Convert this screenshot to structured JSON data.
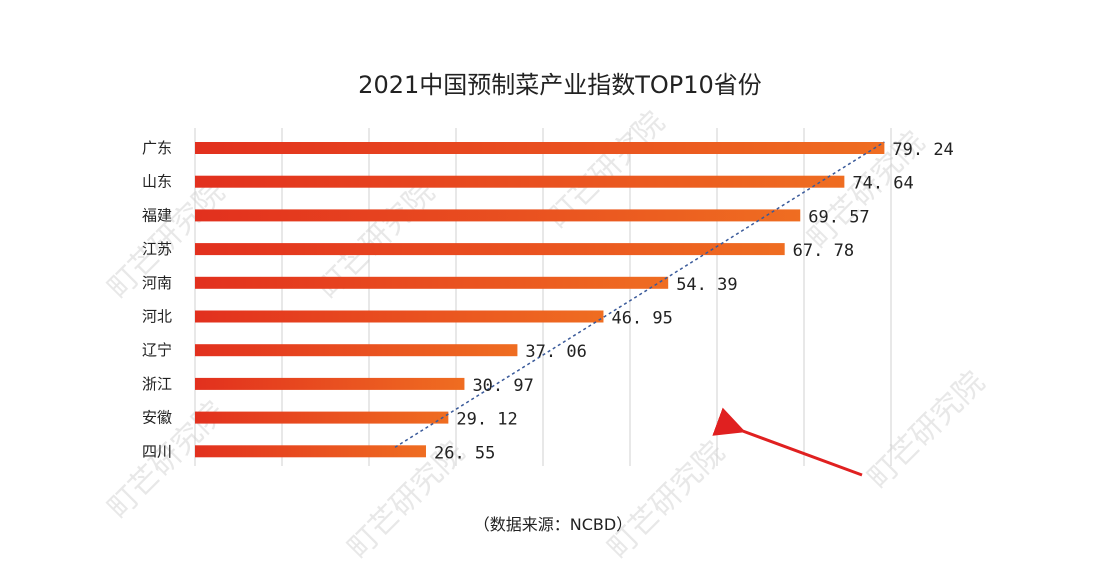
{
  "chart_data": {
    "type": "bar",
    "orientation": "horizontal",
    "title": "2021中国预制菜产业指数TOP10省份",
    "categories": [
      "广东",
      "山东",
      "福建",
      "江苏",
      "河南",
      "河北",
      "辽宁",
      "浙江",
      "安徽",
      "四川"
    ],
    "values": [
      79.24,
      74.64,
      69.57,
      67.78,
      54.39,
      46.95,
      37.06,
      30.97,
      29.12,
      26.55
    ],
    "xlim": [
      0,
      80
    ],
    "grid": true,
    "grid_step": 10,
    "trendline": "dashed linear",
    "annotation_arrow": true,
    "source": "（数据来源：NCBD）",
    "watermark": "町芒研究院",
    "colors": {
      "bar_start": "#e2301e",
      "bar_end": "#ef6d21",
      "trend": "#3a5a9a",
      "arrow": "#e02020",
      "grid": "#d0d0d0"
    }
  }
}
